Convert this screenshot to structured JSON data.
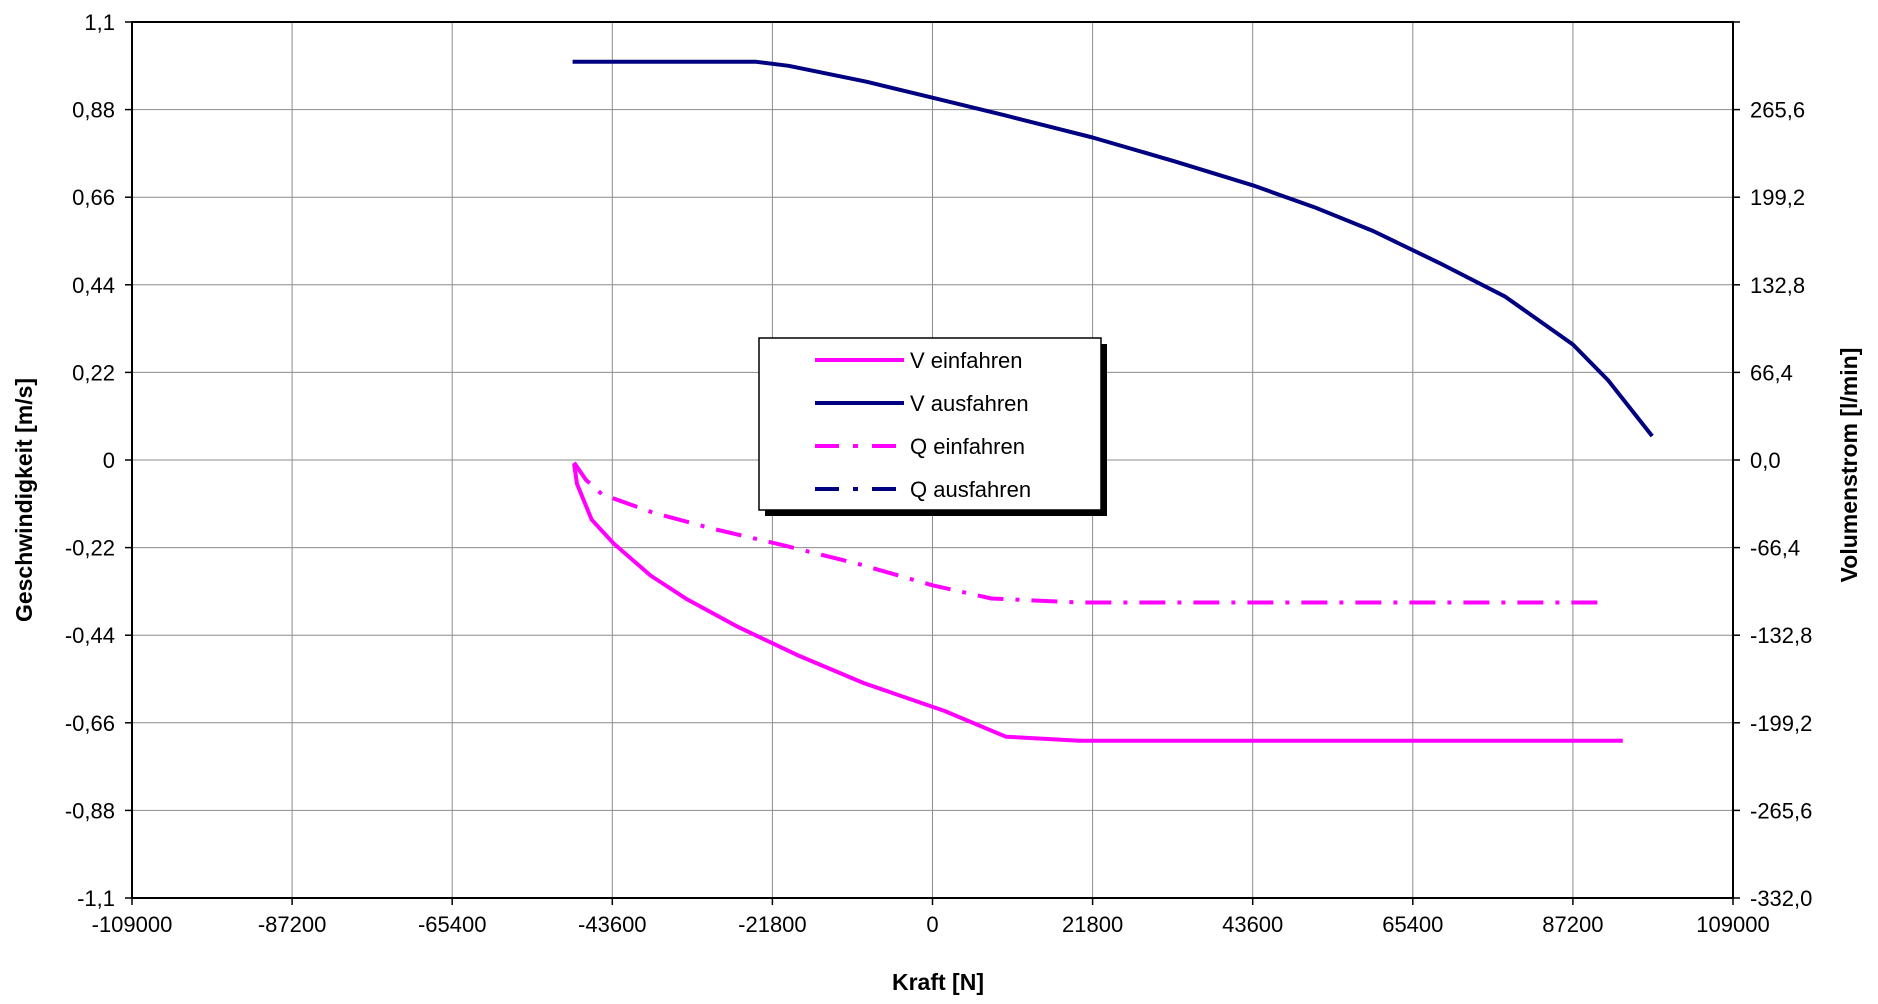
{
  "chart_data": {
    "type": "line",
    "title": "",
    "xlabel": "Kraft [N]",
    "ylabel": "Geschwindigkeit [m/s]",
    "y2label": "Volumenstrom [l/min]",
    "xlim": [
      -109000,
      109000
    ],
    "ylim": [
      -1.1,
      1.1
    ],
    "y2lim": [
      -332.0,
      332.0
    ],
    "grid": true,
    "legend_position": "center",
    "x_ticks": [
      "-109000",
      "-87200",
      "-65400",
      "-43600",
      "-21800",
      "0",
      "21800",
      "43600",
      "65400",
      "87200",
      "109000"
    ],
    "y_ticks": [
      "1,1",
      "0,88",
      "0,66",
      "0,44",
      "0,22",
      "0",
      "-0,22",
      "-0,44",
      "-0,66",
      "-0,88",
      "-1,1"
    ],
    "y2_ticks": [
      "",
      "265,6",
      "199,2",
      "132,8",
      "66,4",
      "0,0",
      "-66,4",
      "-132,8",
      "-199,2",
      "-265,6",
      "-332,0"
    ],
    "series": [
      {
        "name": "V einfahren",
        "axis": "left",
        "color": "#ff00ff",
        "dash": "solid",
        "points": [
          [
            -48800,
            -0.01
          ],
          [
            -48400,
            -0.06
          ],
          [
            -46400,
            -0.15
          ],
          [
            -43400,
            -0.21
          ],
          [
            -38400,
            -0.29
          ],
          [
            -33400,
            -0.35
          ],
          [
            -26400,
            -0.42
          ],
          [
            -18400,
            -0.49
          ],
          [
            -9400,
            -0.56
          ],
          [
            1600,
            -0.63
          ],
          [
            10000,
            -0.695
          ],
          [
            20000,
            -0.705
          ],
          [
            40000,
            -0.705
          ],
          [
            70000,
            -0.705
          ],
          [
            94000,
            -0.705
          ]
        ]
      },
      {
        "name": "V ausfahren",
        "axis": "left",
        "color": "#000080",
        "dash": "solid",
        "points": [
          [
            -49000,
            1.0
          ],
          [
            -40000,
            1.0
          ],
          [
            -30000,
            1.0
          ],
          [
            -24000,
            1.0
          ],
          [
            -19600,
            0.99
          ],
          [
            -9000,
            0.95
          ],
          [
            0,
            0.91
          ],
          [
            10000,
            0.865
          ],
          [
            21800,
            0.81
          ],
          [
            33000,
            0.75
          ],
          [
            43600,
            0.69
          ],
          [
            52000,
            0.635
          ],
          [
            60000,
            0.575
          ],
          [
            69000,
            0.495
          ],
          [
            78000,
            0.41
          ],
          [
            87200,
            0.29
          ],
          [
            92000,
            0.2
          ],
          [
            98000,
            0.06
          ]
        ]
      },
      {
        "name": "Q einfahren",
        "axis": "right",
        "color": "#ff00ff",
        "dash": "dashdot",
        "points": [
          [
            -48800,
            -2
          ],
          [
            -47200,
            -15
          ],
          [
            -45000,
            -26
          ],
          [
            -38000,
            -40
          ],
          [
            -30000,
            -52
          ],
          [
            -20000,
            -65
          ],
          [
            -10000,
            -79
          ],
          [
            0,
            -95
          ],
          [
            8000,
            -105
          ],
          [
            20000,
            -108
          ],
          [
            40000,
            -108
          ],
          [
            60000,
            -108
          ],
          [
            80000,
            -108
          ],
          [
            92000,
            -108
          ]
        ]
      },
      {
        "name": "Q ausfahren",
        "axis": "right",
        "color": "#000080",
        "dash": "dashdot",
        "points": []
      }
    ]
  }
}
